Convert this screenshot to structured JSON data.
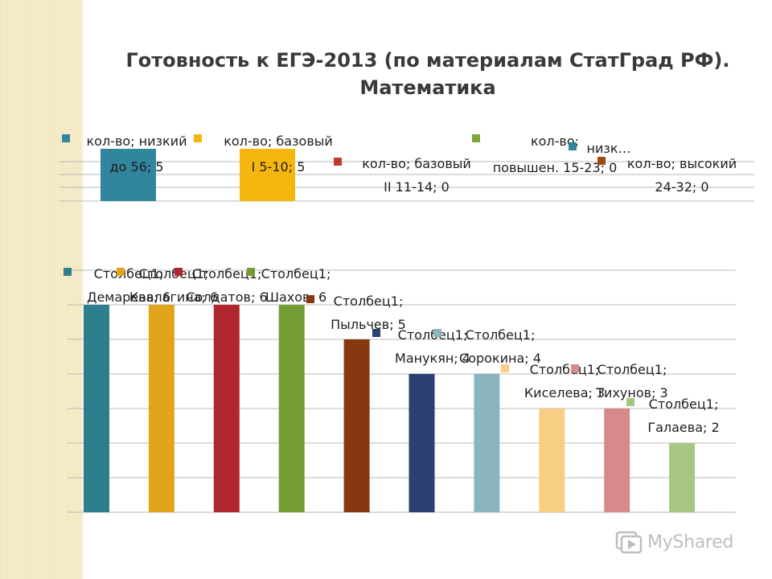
{
  "title": {
    "line1": "Готовность к ЕГЭ-2013 (по материалам  СтатГрад РФ).",
    "line2": "Математика"
  },
  "watermark": "MyShared",
  "chart_data": [
    {
      "type": "bar",
      "grid": true,
      "ylim": [
        0,
        5
      ],
      "series": [
        {
          "name": "кол-во",
          "category_lines": [
            "низкий",
            "до 56"
          ],
          "value": 5,
          "color": "#31859c"
        },
        {
          "name": "кол-во",
          "category_lines": [
            "базовый",
            "I 5-10"
          ],
          "value": 5,
          "color": "#f5b70f"
        },
        {
          "name": "кол-во",
          "category_lines": [
            "базовый",
            "II 11-14"
          ],
          "value": 0,
          "color": "#c0392b"
        },
        {
          "name": "кол-во",
          "category_lines": [
            "повышен. 15-23"
          ],
          "value": 0,
          "color": "#7ea53c"
        },
        {
          "name": "кол-во",
          "category_lines": [
            "низк…"
          ],
          "value": 0,
          "color": "#31859c"
        },
        {
          "name": "кол-во",
          "category_lines": [
            "высокий",
            "24-32"
          ],
          "value": 0,
          "color": "#9a4b13"
        }
      ]
    },
    {
      "type": "bar",
      "grid": true,
      "ylim": [
        0,
        7
      ],
      "series_name": "Столбец1",
      "categories": [
        "Демарева",
        "Кавлагина",
        "Солдатов",
        "Шахов",
        "Пыльчев",
        "Манукян",
        "Сорокина",
        "Киселева",
        "Тихунов",
        "Галаева"
      ],
      "values": [
        6,
        6,
        6,
        6,
        5,
        4,
        4,
        3,
        3,
        2
      ],
      "colors": [
        "#2e7f8e",
        "#e0a51b",
        "#b0262d",
        "#739c34",
        "#86390e",
        "#2b3f73",
        "#8ab5c0",
        "#f8cd84",
        "#d68b8b",
        "#a8c683"
      ]
    }
  ]
}
